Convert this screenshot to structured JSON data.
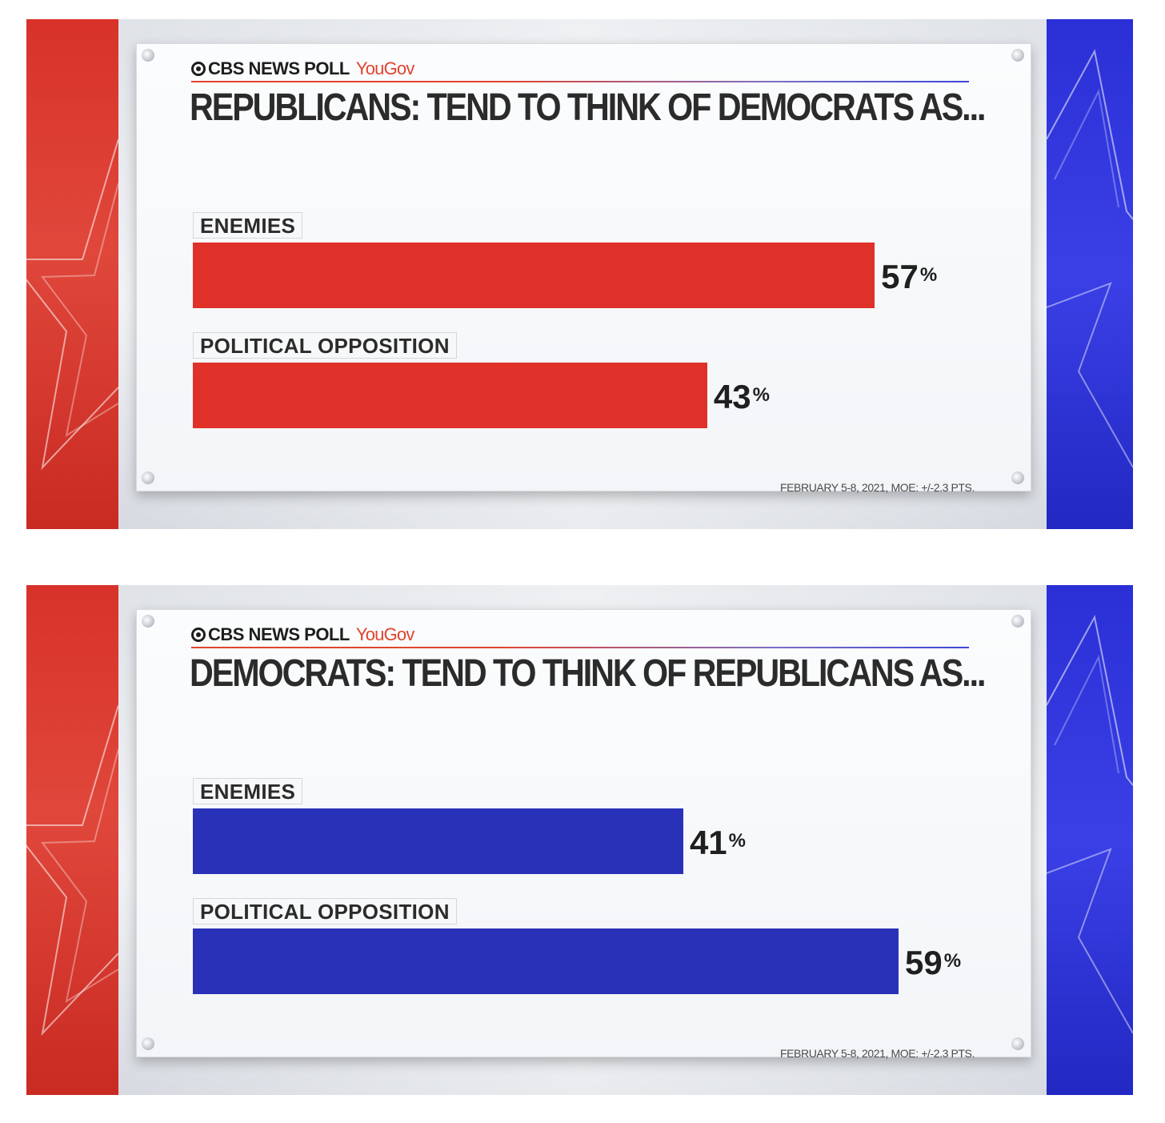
{
  "chart_data": [
    {
      "type": "bar",
      "orientation": "horizontal",
      "brand": "CBS NEWS POLL",
      "partner": "YouGov",
      "title": "REPUBLICANS: TEND TO THINK OF DEMOCRATS AS...",
      "categories": [
        "ENEMIES",
        "POLITICAL OPPOSITION"
      ],
      "values": [
        57,
        43
      ],
      "value_labels": [
        "57",
        "43"
      ],
      "unit": "%",
      "xlim": [
        0,
        100
      ],
      "bar_color": "#e0302a",
      "source": "FEBRUARY 5-8, 2021, MOE: +/-2.3 PTS."
    },
    {
      "type": "bar",
      "orientation": "horizontal",
      "brand": "CBS NEWS POLL",
      "partner": "YouGov",
      "title": "DEMOCRATS: TEND TO THINK OF REPUBLICANS AS...",
      "categories": [
        "ENEMIES",
        "POLITICAL OPPOSITION"
      ],
      "values": [
        41,
        59
      ],
      "value_labels": [
        "41",
        "59"
      ],
      "unit": "%",
      "xlim": [
        0,
        100
      ],
      "bar_color": "#2931b8",
      "source": "FEBRUARY 5-8, 2021, MOE: +/-2.3 PTS."
    }
  ],
  "colors": {
    "left_band": "#d8322a",
    "right_band": "#2a2fd6",
    "brand_accent": "#e2432f"
  },
  "icons": [
    "cbs-eye-icon",
    "star-outline-icon"
  ]
}
